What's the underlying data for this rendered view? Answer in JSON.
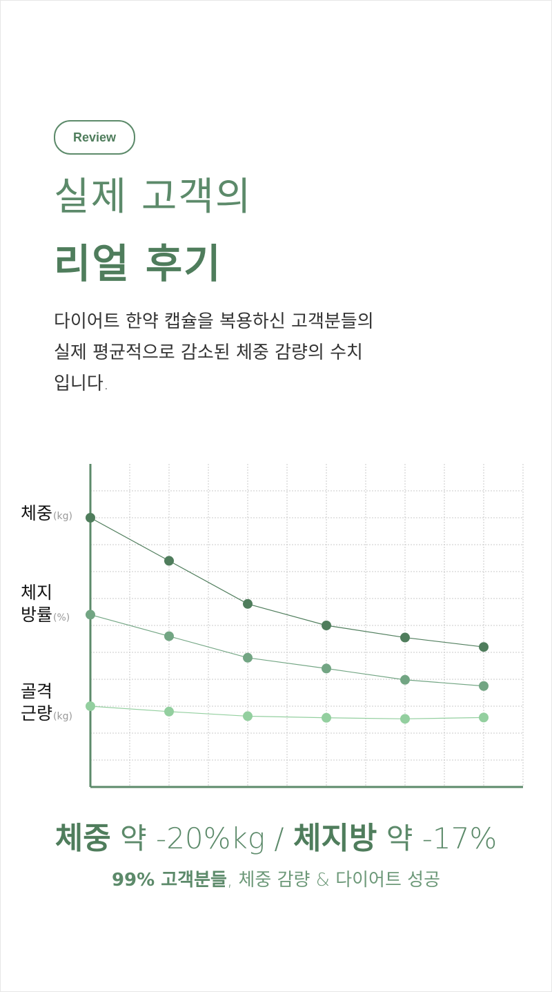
{
  "badge": "Review",
  "title_line1": "실제 고객의",
  "title_line2": "리얼 후기",
  "description": [
    "다이어트 한약 캡슐을 복용하신 고객분들의",
    "실제 평균적으로 감소된 체중 감량의 수치",
    "입니다."
  ],
  "labels": {
    "weight": {
      "text": "체중",
      "unit": "(kg)"
    },
    "fat_line1": "체지",
    "fat_line2": {
      "text": "방률",
      "unit": "(%)"
    },
    "muscle_line1": "골격",
    "muscle_line2": {
      "text": "근량",
      "unit": "(kg)"
    }
  },
  "summary": {
    "w_label": "체중",
    "w_value": " 약 -20%kg / ",
    "f_label": "체지방",
    "f_value": " 약 -17%"
  },
  "sub": {
    "bold": "99% 고객분들",
    "rest": ", 체중 감량 & 다이어트 성공"
  },
  "colors": {
    "weight": "#4f7d5c",
    "fat": "#72a583",
    "muscle": "#93cf9f",
    "axis": "#5c8a6a",
    "grid": "#c8c8c8"
  },
  "chart_data": {
    "type": "line",
    "x": [
      1,
      2,
      3,
      4,
      5,
      6
    ],
    "ylim": [
      0,
      12
    ],
    "grid": true,
    "series": [
      {
        "name": "체중(kg)",
        "values": [
          10,
          8.4,
          6.8,
          6.0,
          5.55,
          5.2
        ]
      },
      {
        "name": "체지방률(%)",
        "values": [
          6.4,
          5.6,
          4.8,
          4.4,
          3.98,
          3.75
        ]
      },
      {
        "name": "골격근량(kg)",
        "values": [
          3.0,
          2.8,
          2.63,
          2.57,
          2.53,
          2.58
        ]
      }
    ]
  }
}
